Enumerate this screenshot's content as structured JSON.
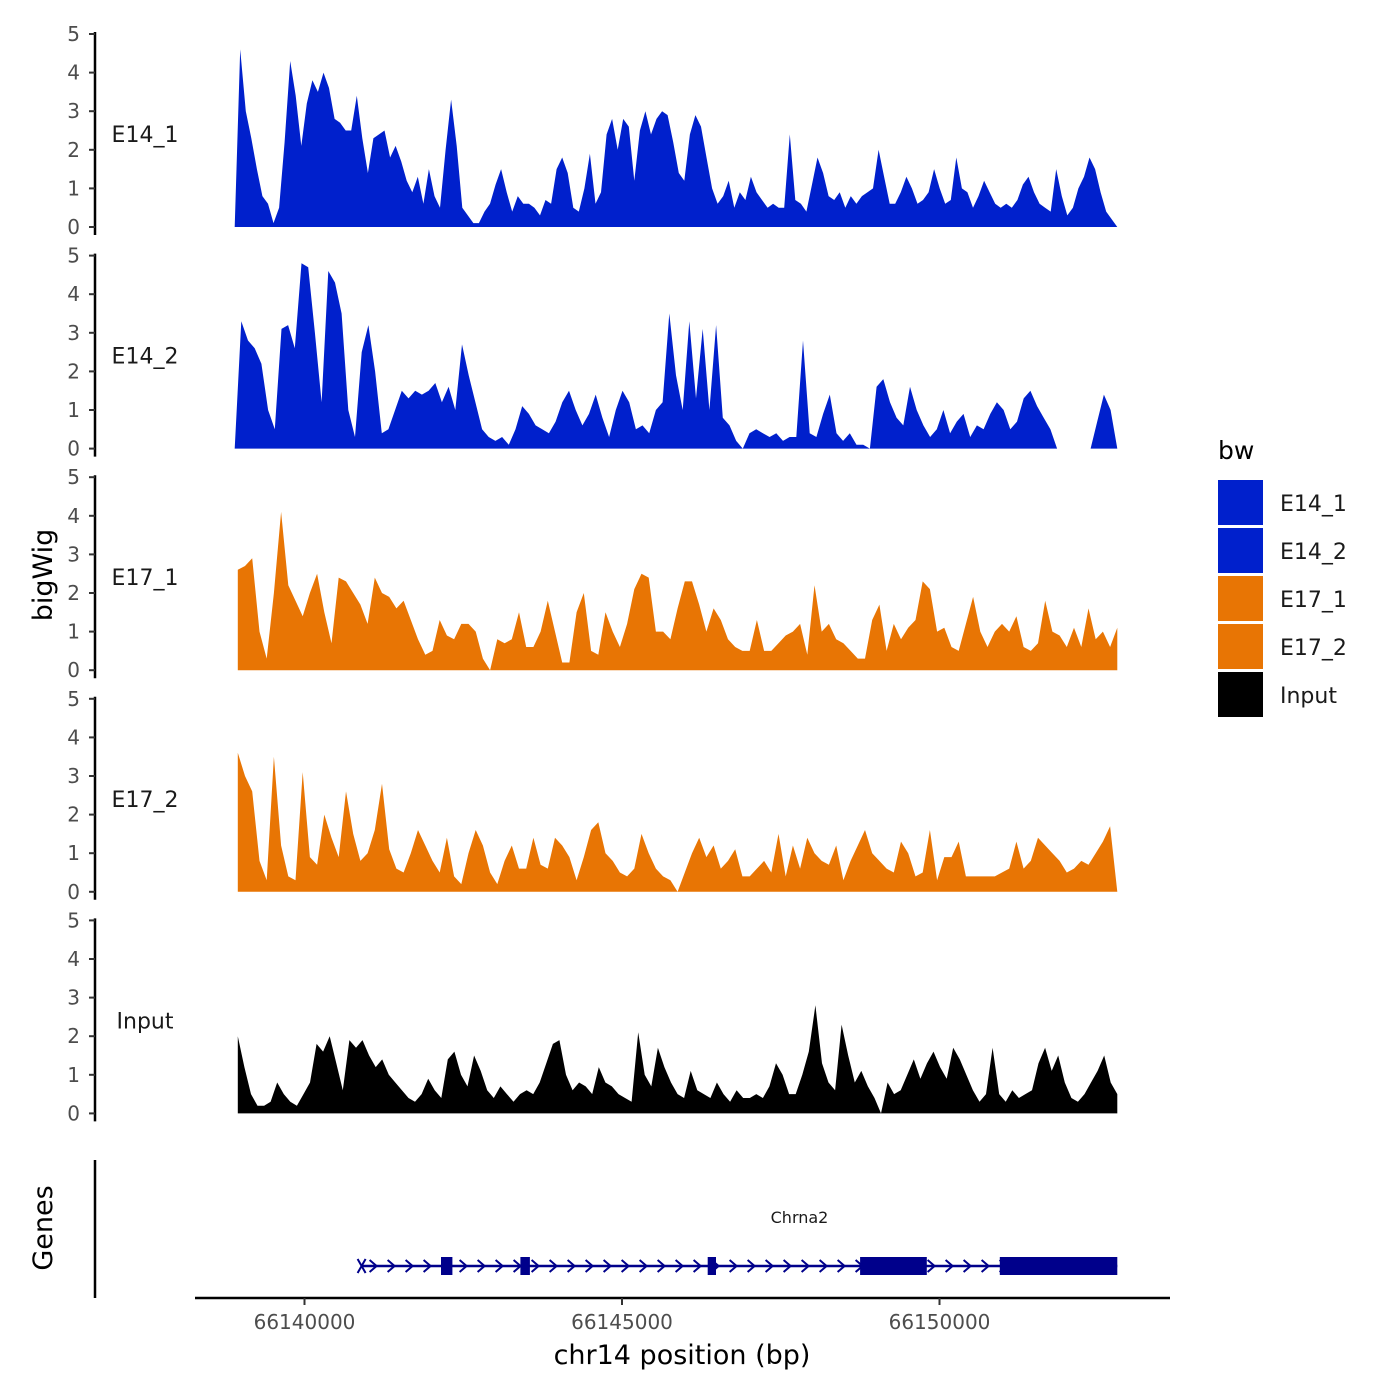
{
  "chart_data": {
    "type": "area",
    "chromosome": "chr14",
    "xlabel": "chr14 position (bp)",
    "ylabel": "bigWig",
    "genes_label": "Genes",
    "xlim": [
      66137800,
      66153200
    ],
    "x_ticks": [
      66140000,
      66145000,
      66150000
    ],
    "ylim": [
      0,
      5
    ],
    "y_ticks": [
      0,
      1,
      2,
      3,
      4,
      5
    ],
    "legend": {
      "title": "bw",
      "items": [
        {
          "label": "E14_1",
          "color": "#0020cc"
        },
        {
          "label": "E14_2",
          "color": "#0020cc"
        },
        {
          "label": "E17_1",
          "color": "#e87504"
        },
        {
          "label": "E17_2",
          "color": "#e87504"
        },
        {
          "label": "Input",
          "color": "#000000"
        }
      ]
    },
    "tracks": [
      {
        "name": "E14_1",
        "color": "#0020cc",
        "start": 66138900,
        "end": 66152800,
        "values": [
          0.0,
          4.6,
          3.0,
          2.3,
          1.5,
          0.8,
          0.6,
          0.1,
          0.5,
          2.2,
          4.3,
          3.4,
          2.1,
          3.2,
          3.8,
          3.5,
          4.0,
          3.6,
          2.8,
          2.7,
          2.5,
          2.5,
          3.4,
          2.3,
          1.4,
          2.3,
          2.4,
          2.5,
          1.8,
          2.1,
          1.7,
          1.2,
          0.9,
          1.3,
          0.6,
          1.5,
          0.8,
          0.5,
          2.0,
          3.3,
          2.1,
          0.5,
          0.3,
          0.1,
          0.1,
          0.4,
          0.6,
          1.1,
          1.5,
          0.9,
          0.4,
          0.8,
          0.6,
          0.6,
          0.5,
          0.3,
          0.7,
          0.6,
          1.5,
          1.8,
          1.4,
          0.5,
          0.4,
          1.0,
          1.9,
          0.6,
          0.9,
          2.4,
          2.8,
          2.0,
          2.8,
          2.6,
          1.2,
          2.5,
          3.0,
          2.4,
          2.8,
          3.0,
          2.9,
          2.2,
          1.4,
          1.2,
          2.4,
          2.9,
          2.6,
          1.8,
          1.0,
          0.6,
          0.8,
          1.2,
          0.5,
          0.9,
          0.7,
          1.3,
          0.9,
          0.7,
          0.5,
          0.6,
          0.5,
          0.5,
          2.4,
          0.7,
          0.6,
          0.4,
          1.1,
          1.8,
          1.4,
          0.8,
          0.7,
          0.9,
          0.5,
          0.8,
          0.6,
          0.8,
          0.9,
          1.0,
          2.0,
          1.3,
          0.6,
          0.6,
          0.9,
          1.3,
          1.0,
          0.6,
          0.7,
          0.9,
          1.5,
          1.0,
          0.6,
          0.7,
          1.8,
          1.0,
          0.9,
          0.5,
          0.8,
          1.2,
          0.9,
          0.6,
          0.5,
          0.6,
          0.5,
          0.7,
          1.1,
          1.3,
          0.9,
          0.6,
          0.5,
          0.4,
          1.5,
          0.8,
          0.3,
          0.5,
          1.0,
          1.3,
          1.8,
          1.5,
          0.9,
          0.4,
          0.2,
          0.0
        ]
      },
      {
        "name": "E14_2",
        "color": "#0020cc",
        "start": 66138900,
        "end": 66152800,
        "values": [
          0.0,
          3.3,
          2.8,
          2.6,
          2.2,
          1.0,
          0.5,
          3.1,
          3.2,
          2.6,
          4.8,
          4.7,
          3.0,
          1.2,
          4.6,
          4.3,
          3.5,
          1.0,
          0.3,
          2.5,
          3.2,
          2.0,
          0.4,
          0.5,
          1.0,
          1.5,
          1.3,
          1.5,
          1.4,
          1.5,
          1.7,
          1.2,
          1.6,
          1.0,
          2.7,
          1.9,
          1.2,
          0.5,
          0.3,
          0.2,
          0.3,
          0.1,
          0.5,
          1.1,
          0.9,
          0.6,
          0.5,
          0.4,
          0.7,
          1.2,
          1.5,
          1.0,
          0.6,
          0.9,
          1.4,
          0.8,
          0.3,
          1.0,
          1.5,
          1.2,
          0.5,
          0.6,
          0.4,
          1.0,
          1.2,
          3.5,
          1.9,
          1.0,
          3.3,
          1.3,
          3.1,
          1.0,
          3.2,
          0.8,
          0.6,
          0.2,
          0.0,
          0.4,
          0.5,
          0.4,
          0.3,
          0.4,
          0.2,
          0.3,
          0.3,
          2.8,
          0.4,
          0.3,
          0.9,
          1.4,
          0.4,
          0.2,
          0.4,
          0.1,
          0.1,
          0.0,
          1.6,
          1.8,
          1.2,
          0.8,
          0.6,
          1.6,
          1.0,
          0.6,
          0.3,
          0.5,
          1.0,
          0.4,
          0.7,
          0.9,
          0.3,
          0.6,
          0.5,
          0.9,
          1.2,
          1.0,
          0.5,
          0.7,
          1.3,
          1.5,
          1.1,
          0.8,
          0.5,
          0.0,
          0.0,
          0.0,
          0.0,
          0.0,
          0.0,
          0.7,
          1.4,
          1.0,
          0.0
        ]
      },
      {
        "name": "E17_1",
        "color": "#e87504",
        "start": 66138950,
        "end": 66152800,
        "values": [
          2.6,
          2.7,
          2.9,
          1.0,
          0.3,
          2.0,
          4.1,
          2.2,
          1.8,
          1.4,
          2.0,
          2.5,
          1.5,
          0.7,
          2.4,
          2.3,
          2.0,
          1.7,
          1.2,
          2.4,
          2.0,
          1.9,
          1.6,
          1.8,
          1.3,
          0.8,
          0.4,
          0.5,
          1.3,
          0.9,
          0.8,
          1.2,
          1.2,
          1.0,
          0.3,
          0.0,
          0.8,
          0.7,
          0.8,
          1.5,
          0.6,
          0.6,
          1.0,
          1.8,
          1.0,
          0.2,
          0.2,
          1.5,
          2.0,
          0.5,
          0.4,
          1.5,
          1.0,
          0.6,
          1.2,
          2.1,
          2.5,
          2.4,
          1.0,
          1.0,
          0.8,
          1.6,
          2.3,
          2.3,
          1.7,
          1.0,
          1.6,
          1.3,
          0.8,
          0.6,
          0.5,
          0.5,
          1.3,
          0.5,
          0.5,
          0.7,
          0.9,
          1.0,
          1.2,
          0.4,
          2.2,
          1.0,
          1.2,
          0.8,
          0.7,
          0.5,
          0.3,
          0.3,
          1.3,
          1.7,
          0.5,
          1.2,
          0.8,
          1.1,
          1.3,
          2.3,
          2.1,
          1.0,
          1.1,
          0.6,
          0.5,
          1.2,
          1.9,
          1.0,
          0.6,
          1.0,
          1.2,
          1.0,
          1.4,
          0.6,
          0.5,
          0.7,
          1.8,
          1.0,
          0.9,
          0.6,
          1.1,
          0.6,
          1.6,
          0.8,
          1.0,
          0.6,
          1.1
        ]
      },
      {
        "name": "E17_2",
        "color": "#e87504",
        "start": 66138950,
        "end": 66152800,
        "values": [
          3.6,
          3.0,
          2.6,
          0.8,
          0.3,
          3.5,
          1.2,
          0.4,
          0.3,
          3.1,
          0.9,
          0.7,
          2.0,
          1.4,
          0.9,
          2.6,
          1.5,
          0.8,
          1.0,
          1.6,
          2.8,
          1.1,
          0.6,
          0.5,
          1.0,
          1.6,
          1.2,
          0.8,
          0.5,
          1.4,
          0.4,
          0.2,
          1.0,
          1.6,
          1.2,
          0.5,
          0.2,
          0.8,
          1.2,
          0.6,
          0.6,
          1.4,
          0.7,
          0.6,
          1.4,
          1.2,
          0.9,
          0.3,
          0.9,
          1.6,
          1.8,
          1.0,
          0.8,
          0.5,
          0.4,
          0.6,
          1.5,
          1.0,
          0.6,
          0.4,
          0.3,
          0.0,
          0.5,
          1.0,
          1.4,
          0.9,
          1.2,
          0.6,
          0.8,
          1.1,
          0.4,
          0.4,
          0.6,
          0.8,
          0.5,
          1.5,
          0.4,
          1.2,
          0.6,
          1.4,
          1.0,
          0.8,
          0.7,
          1.2,
          0.3,
          0.8,
          1.2,
          1.6,
          1.0,
          0.8,
          0.6,
          0.5,
          1.3,
          1.0,
          0.4,
          0.5,
          1.6,
          0.3,
          0.9,
          0.9,
          1.3,
          0.4,
          0.4,
          0.4,
          0.4,
          0.4,
          0.5,
          0.6,
          1.3,
          0.6,
          0.8,
          1.4,
          1.2,
          1.0,
          0.8,
          0.5,
          0.6,
          0.8,
          0.7,
          1.0,
          1.3,
          1.7,
          0.0
        ]
      },
      {
        "name": "Input",
        "color": "#000000",
        "start": 66138950,
        "end": 66152800,
        "values": [
          2.0,
          1.2,
          0.5,
          0.2,
          0.2,
          0.3,
          0.8,
          0.5,
          0.3,
          0.2,
          0.5,
          0.8,
          1.8,
          1.6,
          2.0,
          1.3,
          0.6,
          1.9,
          1.7,
          1.9,
          1.5,
          1.2,
          1.4,
          1.0,
          0.8,
          0.6,
          0.4,
          0.3,
          0.5,
          0.9,
          0.6,
          0.4,
          1.4,
          1.6,
          1.0,
          0.7,
          1.5,
          1.1,
          0.6,
          0.4,
          0.7,
          0.5,
          0.3,
          0.5,
          0.6,
          0.5,
          0.8,
          1.3,
          1.8,
          1.9,
          1.0,
          0.6,
          0.8,
          0.7,
          0.5,
          1.2,
          0.8,
          0.7,
          0.5,
          0.4,
          0.3,
          2.1,
          1.0,
          0.7,
          1.7,
          1.2,
          0.8,
          0.5,
          0.4,
          1.1,
          0.6,
          0.5,
          0.4,
          0.8,
          0.5,
          0.3,
          0.6,
          0.4,
          0.4,
          0.5,
          0.4,
          0.7,
          1.3,
          1.0,
          0.5,
          0.5,
          1.0,
          1.6,
          2.8,
          1.3,
          0.8,
          0.6,
          2.3,
          1.5,
          0.8,
          1.1,
          0.7,
          0.4,
          0.0,
          0.8,
          0.5,
          0.6,
          1.0,
          1.4,
          0.9,
          1.3,
          1.6,
          1.2,
          0.9,
          1.7,
          1.4,
          1.0,
          0.6,
          0.3,
          0.5,
          1.7,
          0.5,
          0.3,
          0.6,
          0.4,
          0.5,
          0.6,
          1.3,
          1.7,
          1.1,
          1.5,
          0.8,
          0.4,
          0.3,
          0.5,
          0.8,
          1.1,
          1.5,
          0.8,
          0.5
        ]
      }
    ],
    "genes": [
      {
        "name": "Chrna2",
        "strand": "+",
        "start": 66140900,
        "end": 66152800,
        "color": "#00008b",
        "exons": [
          [
            66142150,
            66142330
          ],
          [
            66143400,
            66143550
          ],
          [
            66146350,
            66146480
          ],
          [
            66148750,
            66149800
          ],
          [
            66150950,
            66152800
          ]
        ]
      }
    ]
  }
}
